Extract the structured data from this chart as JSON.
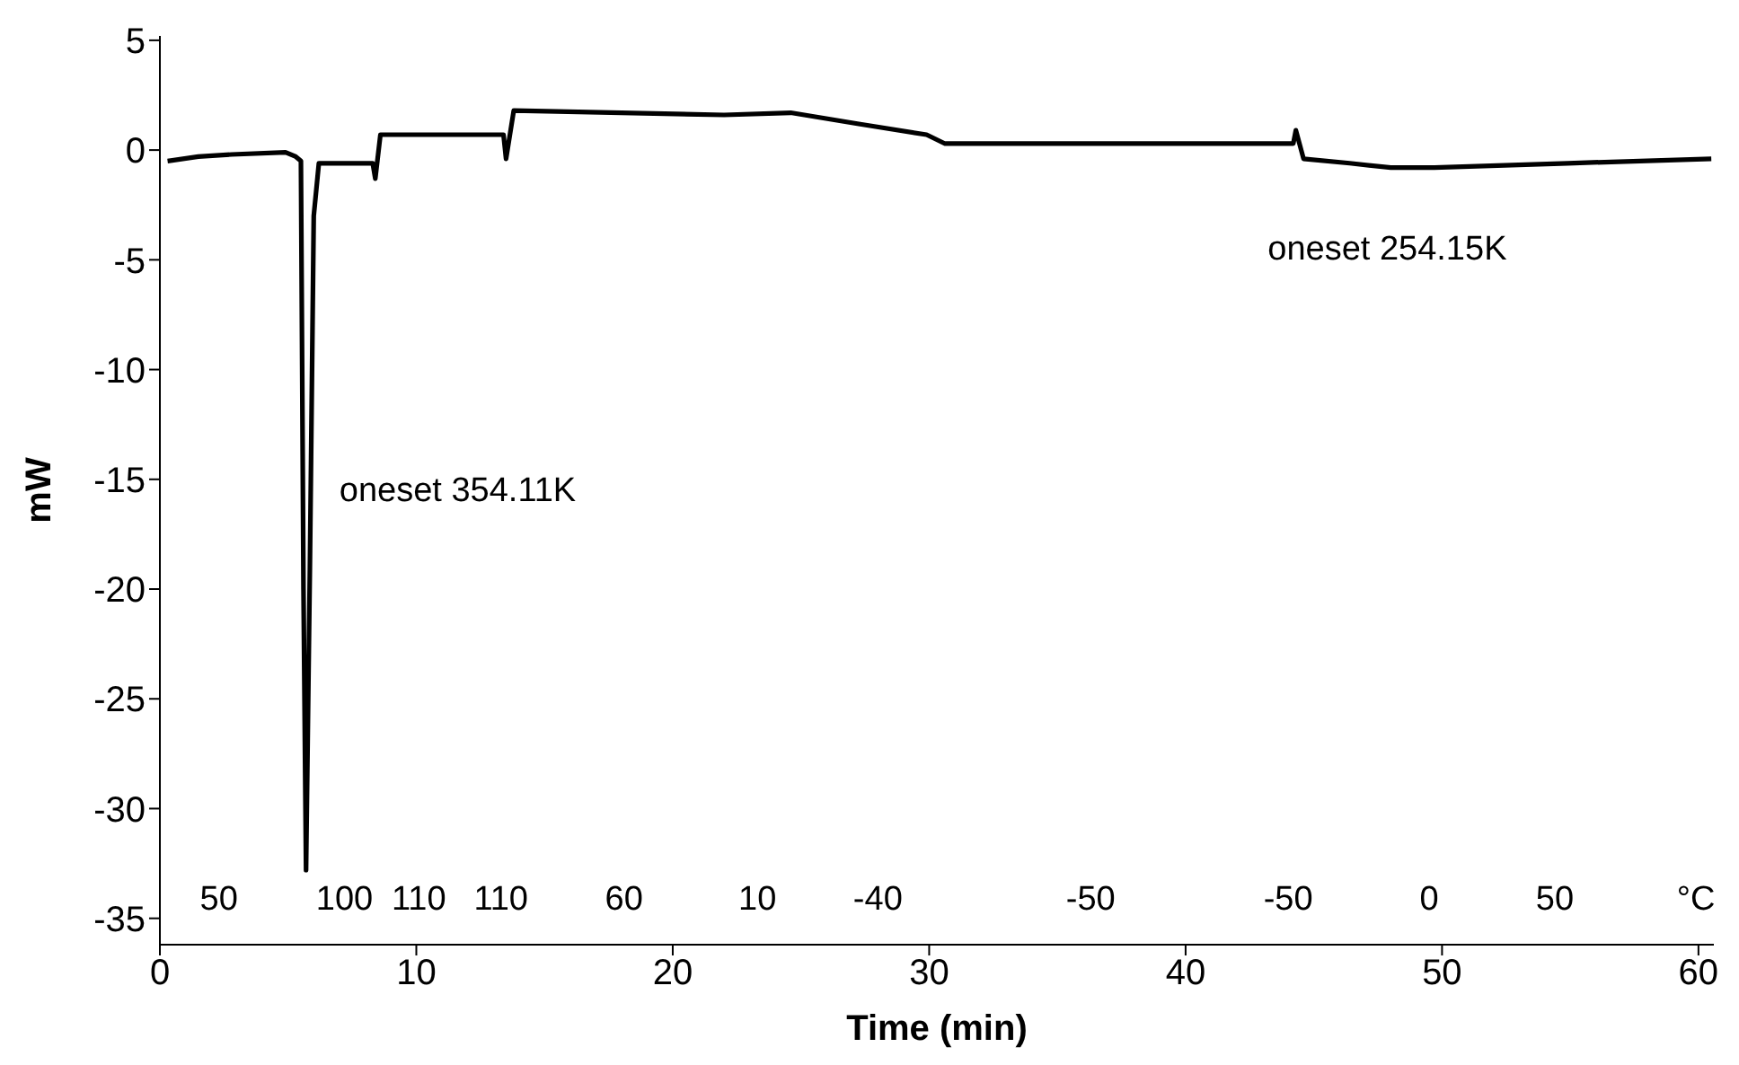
{
  "chart_data": {
    "type": "line",
    "xlabel": "Time (min)",
    "ylabel": "mW",
    "xlim": [
      0,
      60.6
    ],
    "xticks": [
      0,
      10,
      20,
      30,
      40,
      50,
      60
    ],
    "ylim": [
      -36.2,
      5.2
    ],
    "yticks": [
      5,
      0,
      -5,
      -10,
      -15,
      -20,
      -25,
      -30,
      -35
    ],
    "marker": "none",
    "line_style": "solid",
    "annotations": [
      "oneset 354.11K",
      "oneset 254.15K",
      "50",
      "100",
      "110",
      "110",
      "60",
      "10",
      "-40",
      "-50",
      "-50",
      "0",
      "50",
      "°C"
    ],
    "series": [
      {
        "color": "#000000",
        "x": [
          0.3,
          1.5,
          2.8,
          4.9,
          5.3,
          5.5,
          5.6,
          5.7,
          5.85,
          6.0,
          6.2,
          8.3,
          8.4,
          8.6,
          13.4,
          13.5,
          13.8,
          18,
          22,
          24.6,
          27.2,
          29.9,
          30.6,
          44.2,
          44.3,
          44.6,
          46.4,
          48,
          49.7,
          54.9,
          60.5
        ],
        "values": [
          -0.5,
          -0.3,
          -0.2,
          -0.1,
          -0.3,
          -0.5,
          -20,
          -32.8,
          -19,
          -3,
          -0.6,
          -0.6,
          -1.3,
          0.7,
          0.7,
          -0.4,
          1.8,
          1.7,
          1.6,
          1.7,
          1.2,
          0.7,
          0.3,
          0.3,
          0.9,
          -0.4,
          -0.6,
          -0.8,
          -0.8,
          -0.6,
          -0.4
        ]
      }
    ]
  }
}
